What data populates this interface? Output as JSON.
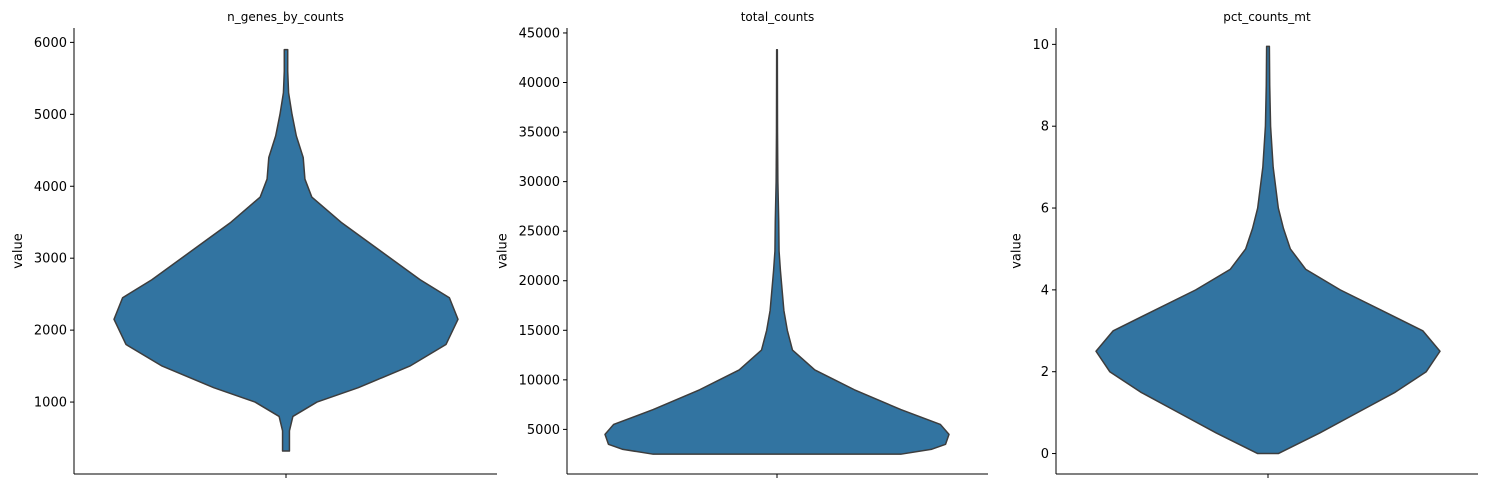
{
  "chart_data": [
    {
      "type": "violin",
      "title": "n_genes_by_counts",
      "ylabel": "value",
      "ylim": [
        0,
        6200
      ],
      "yticks": [
        1000,
        2000,
        3000,
        4000,
        5000,
        6000
      ],
      "fill_color": "#3274a1",
      "edge_color": "#3d3d3d",
      "density_profile": [
        {
          "y": 320,
          "w": 0.02
        },
        {
          "y": 600,
          "w": 0.02
        },
        {
          "y": 800,
          "w": 0.04
        },
        {
          "y": 1000,
          "w": 0.18
        },
        {
          "y": 1200,
          "w": 0.42
        },
        {
          "y": 1500,
          "w": 0.72
        },
        {
          "y": 1800,
          "w": 0.93
        },
        {
          "y": 2150,
          "w": 1.0
        },
        {
          "y": 2450,
          "w": 0.95
        },
        {
          "y": 2700,
          "w": 0.78
        },
        {
          "y": 3100,
          "w": 0.55
        },
        {
          "y": 3500,
          "w": 0.32
        },
        {
          "y": 3850,
          "w": 0.15
        },
        {
          "y": 4100,
          "w": 0.11
        },
        {
          "y": 4400,
          "w": 0.1
        },
        {
          "y": 4700,
          "w": 0.06
        },
        {
          "y": 5000,
          "w": 0.035
        },
        {
          "y": 5300,
          "w": 0.015
        },
        {
          "y": 5600,
          "w": 0.01
        },
        {
          "y": 5900,
          "w": 0.01
        }
      ]
    },
    {
      "type": "violin",
      "title": "total_counts",
      "ylabel": "value",
      "ylim": [
        500,
        45500
      ],
      "yticks": [
        5000,
        10000,
        15000,
        20000,
        25000,
        30000,
        35000,
        40000,
        45000
      ],
      "fill_color": "#3274a1",
      "edge_color": "#3d3d3d",
      "density_profile": [
        {
          "y": 2500,
          "w": 0.72
        },
        {
          "y": 3000,
          "w": 0.9
        },
        {
          "y": 3500,
          "w": 0.98
        },
        {
          "y": 4500,
          "w": 1.0
        },
        {
          "y": 5500,
          "w": 0.95
        },
        {
          "y": 7000,
          "w": 0.72
        },
        {
          "y": 9000,
          "w": 0.45
        },
        {
          "y": 11000,
          "w": 0.22
        },
        {
          "y": 13000,
          "w": 0.09
        },
        {
          "y": 15000,
          "w": 0.06
        },
        {
          "y": 17000,
          "w": 0.04
        },
        {
          "y": 19000,
          "w": 0.03
        },
        {
          "y": 21000,
          "w": 0.02
        },
        {
          "y": 23000,
          "w": 0.012
        },
        {
          "y": 26000,
          "w": 0.01
        },
        {
          "y": 30000,
          "w": 0.005
        },
        {
          "y": 35000,
          "w": 0.003
        },
        {
          "y": 43300,
          "w": 0.002
        }
      ]
    },
    {
      "type": "violin",
      "title": "pct_counts_mt",
      "ylabel": "value",
      "ylim": [
        -0.5,
        10.4
      ],
      "yticks": [
        0,
        2,
        4,
        6,
        8,
        10
      ],
      "fill_color": "#3274a1",
      "edge_color": "#3d3d3d",
      "density_profile": [
        {
          "y": 0.0,
          "w": 0.06
        },
        {
          "y": 0.5,
          "w": 0.3
        },
        {
          "y": 1.0,
          "w": 0.52
        },
        {
          "y": 1.5,
          "w": 0.74
        },
        {
          "y": 2.0,
          "w": 0.92
        },
        {
          "y": 2.5,
          "w": 1.0
        },
        {
          "y": 3.0,
          "w": 0.9
        },
        {
          "y": 3.5,
          "w": 0.66
        },
        {
          "y": 4.0,
          "w": 0.42
        },
        {
          "y": 4.5,
          "w": 0.22
        },
        {
          "y": 5.0,
          "w": 0.13
        },
        {
          "y": 5.5,
          "w": 0.09
        },
        {
          "y": 6.0,
          "w": 0.06
        },
        {
          "y": 7.0,
          "w": 0.03
        },
        {
          "y": 8.0,
          "w": 0.015
        },
        {
          "y": 9.0,
          "w": 0.01
        },
        {
          "y": 9.95,
          "w": 0.008
        }
      ]
    }
  ]
}
